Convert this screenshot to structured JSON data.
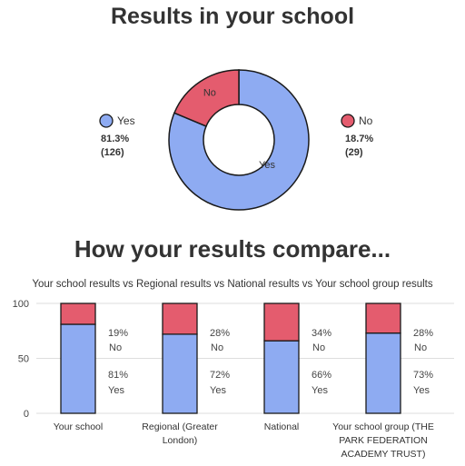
{
  "donut_section": {
    "title": "Results in your school"
  },
  "compare_section": {
    "title": "How your results compare...",
    "subtitle": "Your school results vs Regional results vs National results vs Your school group results"
  },
  "colors": {
    "yes": "#8eabf2",
    "no": "#e45c6e",
    "outline": "#1a1a1a",
    "axis_text": "#444444",
    "grid": "#dddddd"
  },
  "chart_data": [
    {
      "type": "pie",
      "title": "Results in your school",
      "slices": [
        {
          "label": "Yes",
          "percent_label": "81.3%",
          "count_label": "(126)",
          "value": 81.3,
          "count": 126
        },
        {
          "label": "No",
          "percent_label": "18.7%",
          "count_label": "(29)",
          "value": 18.7,
          "count": 29
        }
      ],
      "legend": [
        "Yes",
        "No"
      ]
    },
    {
      "type": "bar",
      "stacked": true,
      "title": "How your results compare...",
      "subtitle": "Your school results vs Regional results vs National results vs Your school group results",
      "categories": [
        "Your school",
        "Regional (Greater London)",
        "National",
        "Your school group (THE PARK FEDERATION ACADEMY TRUST)"
      ],
      "category_lines": [
        [
          "Your school"
        ],
        [
          "Regional (Greater",
          "London)"
        ],
        [
          "National"
        ],
        [
          "Your school group (THE",
          "PARK FEDERATION",
          "ACADEMY TRUST)"
        ]
      ],
      "series": [
        {
          "name": "Yes",
          "values": [
            81,
            72,
            66,
            73
          ],
          "labels": [
            "81%",
            "72%",
            "66%",
            "73%"
          ]
        },
        {
          "name": "No",
          "values": [
            19,
            28,
            34,
            28
          ],
          "labels": [
            "19%",
            "28%",
            "34%",
            "28%"
          ]
        }
      ],
      "ylim": [
        0,
        100
      ],
      "yticks": [
        "0",
        "50",
        "100"
      ]
    }
  ]
}
